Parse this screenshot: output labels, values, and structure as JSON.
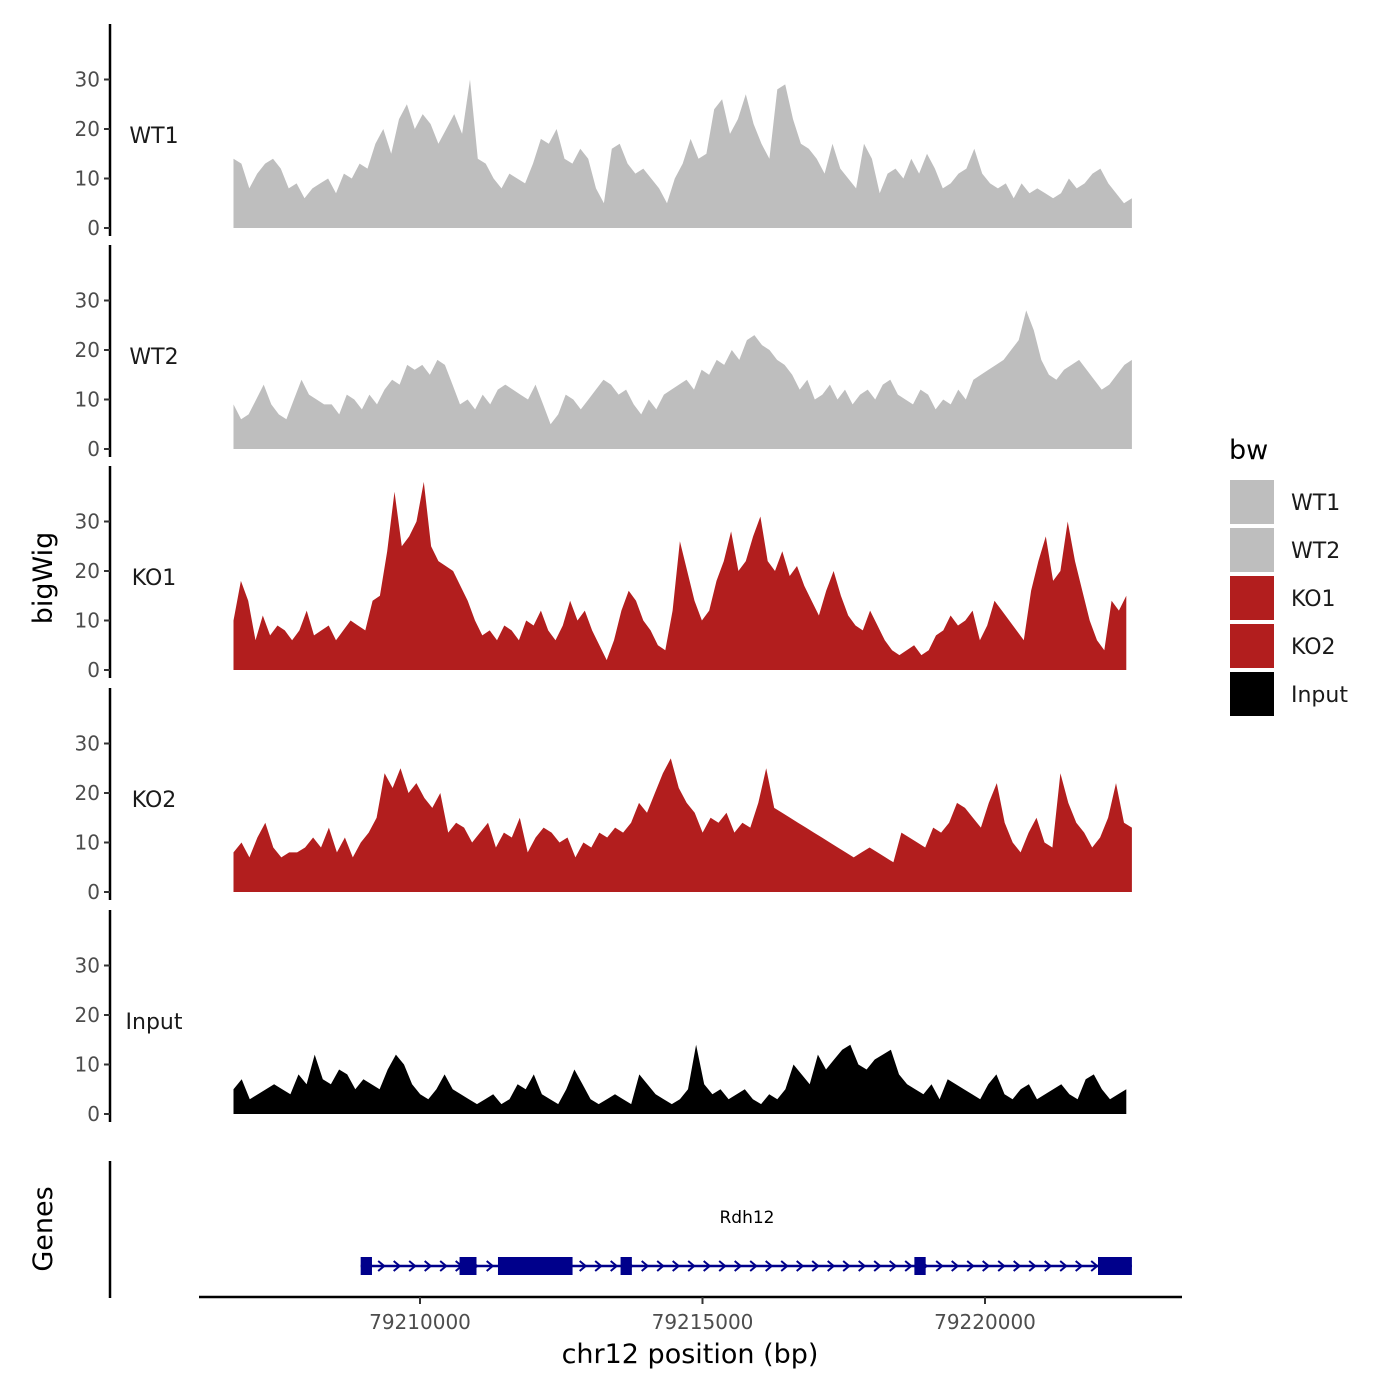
{
  "chart_data": {
    "type": "area",
    "chromosome": "chr12",
    "x_axis": {
      "label": "chr12 position (bp)",
      "ticks": [
        79210000,
        79215000,
        79220000
      ],
      "tick_labels": [
        "79210000",
        "79215000",
        "79220000"
      ],
      "range": [
        79206300,
        79223700
      ]
    },
    "y_axis": {
      "label": "bigWig",
      "ticks": [
        0,
        10,
        20,
        30
      ],
      "tick_labels": [
        "0",
        "10",
        "20",
        "30"
      ],
      "range": [
        0,
        40
      ]
    },
    "legend": {
      "title": "bw",
      "position": "right",
      "items": [
        {
          "label": "WT1",
          "color": "#bebebe"
        },
        {
          "label": "WT2",
          "color": "#bebebe"
        },
        {
          "label": "KO1",
          "color": "#b21e1e"
        },
        {
          "label": "KO2",
          "color": "#b21e1e"
        },
        {
          "label": "Input",
          "color": "#000000"
        }
      ]
    },
    "series": [
      {
        "name": "WT1",
        "color": "#bebebe",
        "x_start": 79206700,
        "x_end": 79222600,
        "values": [
          14,
          13,
          8,
          11,
          13,
          14,
          12,
          8,
          9,
          6,
          8,
          9,
          10,
          7,
          11,
          10,
          13,
          12,
          17,
          20,
          15,
          22,
          25,
          20,
          23,
          21,
          17,
          20,
          23,
          19,
          30,
          14,
          13,
          10,
          8,
          11,
          10,
          9,
          13,
          18,
          17,
          20,
          14,
          13,
          16,
          14,
          8,
          5,
          16,
          17,
          13,
          11,
          12,
          10,
          8,
          5,
          10,
          13,
          18,
          14,
          15,
          24,
          26,
          19,
          22,
          27,
          21,
          17,
          14,
          28,
          29,
          22,
          17,
          16,
          14,
          11,
          17,
          12,
          10,
          8,
          17,
          14,
          7,
          11,
          12,
          10,
          14,
          11,
          15,
          12,
          8,
          9,
          11,
          12,
          16,
          11,
          9,
          8,
          9,
          6,
          9,
          7,
          8,
          7,
          6,
          7,
          10,
          8,
          9,
          11,
          12,
          9,
          7,
          5,
          6
        ]
      },
      {
        "name": "WT2",
        "color": "#bebebe",
        "x_start": 79206700,
        "x_end": 79222600,
        "values": [
          9,
          6,
          7,
          10,
          13,
          9,
          7,
          6,
          10,
          14,
          11,
          10,
          9,
          9,
          7,
          11,
          10,
          8,
          11,
          9,
          12,
          14,
          13,
          17,
          16,
          17,
          15,
          18,
          17,
          13,
          9,
          10,
          8,
          11,
          9,
          12,
          13,
          12,
          11,
          10,
          13,
          9,
          5,
          7,
          11,
          10,
          8,
          10,
          12,
          14,
          13,
          11,
          12,
          9,
          7,
          10,
          8,
          11,
          12,
          13,
          14,
          12,
          16,
          15,
          18,
          17,
          20,
          18,
          22,
          23,
          21,
          20,
          18,
          17,
          15,
          12,
          14,
          10,
          11,
          13,
          10,
          12,
          9,
          11,
          12,
          10,
          13,
          14,
          11,
          10,
          9,
          12,
          11,
          8,
          10,
          9,
          12,
          10,
          14,
          15,
          16,
          17,
          18,
          20,
          22,
          28,
          24,
          18,
          15,
          14,
          16,
          17,
          18,
          16,
          14,
          12,
          13,
          15,
          17,
          18
        ]
      },
      {
        "name": "KO1",
        "color": "#b21e1e",
        "x_start": 79206700,
        "x_end": 79222500,
        "values": [
          10,
          18,
          14,
          6,
          11,
          7,
          9,
          8,
          6,
          8,
          12,
          7,
          8,
          9,
          6,
          8,
          10,
          9,
          8,
          14,
          15,
          24,
          36,
          25,
          27,
          30,
          38,
          25,
          22,
          21,
          20,
          17,
          14,
          10,
          7,
          8,
          6,
          9,
          8,
          6,
          10,
          9,
          12,
          8,
          6,
          9,
          14,
          10,
          12,
          8,
          5,
          2,
          6,
          12,
          16,
          14,
          10,
          8,
          5,
          4,
          12,
          26,
          20,
          14,
          10,
          12,
          18,
          22,
          28,
          20,
          22,
          27,
          31,
          22,
          20,
          24,
          19,
          21,
          17,
          14,
          11,
          16,
          20,
          15,
          11,
          9,
          8,
          12,
          9,
          6,
          4,
          3,
          4,
          5,
          3,
          4,
          7,
          8,
          11,
          9,
          10,
          12,
          6,
          9,
          14,
          12,
          10,
          8,
          6,
          16,
          22,
          27,
          18,
          20,
          30,
          22,
          16,
          10,
          6,
          4,
          14,
          12,
          15
        ]
      },
      {
        "name": "KO2",
        "color": "#b21e1e",
        "x_start": 79206700,
        "x_end": 79222600,
        "values": [
          8,
          10,
          7,
          11,
          14,
          9,
          7,
          8,
          8,
          9,
          11,
          9,
          13,
          8,
          11,
          7,
          10,
          12,
          15,
          24,
          21,
          25,
          20,
          22,
          19,
          17,
          20,
          12,
          14,
          13,
          10,
          12,
          14,
          9,
          12,
          11,
          15,
          8,
          11,
          13,
          12,
          10,
          11,
          7,
          10,
          9,
          12,
          11,
          13,
          12,
          14,
          18,
          16,
          20,
          24,
          27,
          21,
          18,
          16,
          12,
          15,
          14,
          16,
          12,
          14,
          13,
          18,
          25,
          17,
          16,
          15,
          14,
          13,
          12,
          11,
          10,
          9,
          8,
          7,
          8,
          9,
          8,
          7,
          6,
          12,
          11,
          10,
          9,
          13,
          12,
          14,
          18,
          17,
          15,
          13,
          18,
          22,
          14,
          10,
          8,
          12,
          15,
          10,
          9,
          24,
          18,
          14,
          12,
          9,
          11,
          15,
          22,
          14,
          13
        ]
      },
      {
        "name": "Input",
        "color": "#000000",
        "x_start": 79206700,
        "x_end": 79222500,
        "values": [
          5,
          7,
          3,
          4,
          5,
          6,
          5,
          4,
          8,
          6,
          12,
          7,
          6,
          9,
          8,
          5,
          7,
          6,
          5,
          9,
          12,
          10,
          6,
          4,
          3,
          5,
          8,
          5,
          4,
          3,
          2,
          3,
          4,
          2,
          3,
          6,
          5,
          8,
          4,
          3,
          2,
          5,
          9,
          6,
          3,
          2,
          3,
          4,
          3,
          2,
          8,
          6,
          4,
          3,
          2,
          3,
          5,
          14,
          6,
          4,
          5,
          3,
          4,
          5,
          3,
          2,
          4,
          3,
          5,
          10,
          8,
          6,
          12,
          9,
          11,
          13,
          14,
          10,
          9,
          11,
          12,
          13,
          8,
          6,
          5,
          4,
          6,
          3,
          7,
          6,
          5,
          4,
          3,
          6,
          8,
          4,
          3,
          5,
          6,
          3,
          4,
          5,
          6,
          4,
          3,
          7,
          8,
          5,
          3,
          4,
          5
        ]
      }
    ],
    "genes": [
      {
        "name": "Rdh12",
        "strand": "+",
        "start": 79208950,
        "end": 79222600,
        "exons": [
          [
            79208950,
            79209150
          ],
          [
            79210700,
            79211000
          ],
          [
            79211380,
            79212700
          ],
          [
            79213550,
            79213750
          ],
          [
            79218750,
            79218950
          ],
          [
            79222000,
            79222600
          ]
        ]
      }
    ],
    "gene_track_label": "Genes"
  }
}
